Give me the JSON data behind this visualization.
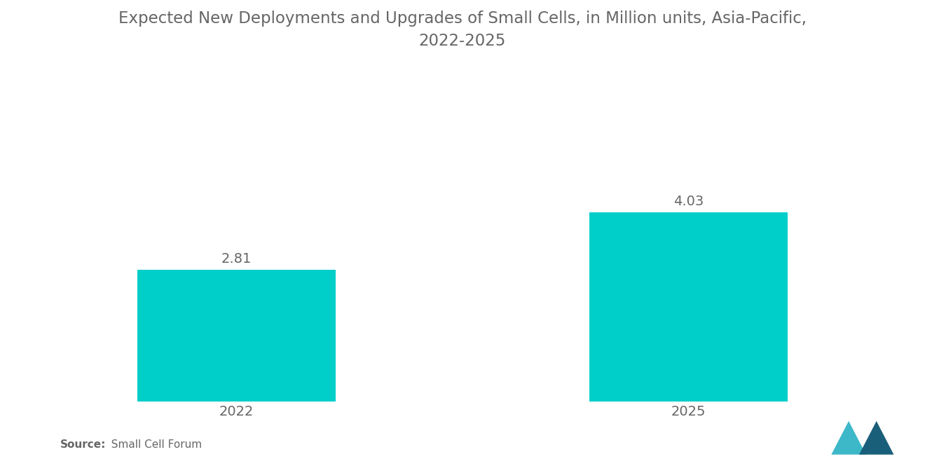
{
  "title": "Expected New Deployments and Upgrades of Small Cells, in Million units, Asia-Pacific,\n2022-2025",
  "categories": [
    "2022",
    "2025"
  ],
  "values": [
    2.81,
    4.03
  ],
  "bar_color": "#00CEC9",
  "bar_width": 0.22,
  "label_color": "#666666",
  "title_color": "#666666",
  "title_fontsize": 16.5,
  "label_fontsize": 14,
  "value_fontsize": 14,
  "source_bold": "Source:",
  "source_regular": "  Small Cell Forum",
  "source_fontsize": 11,
  "background_color": "#ffffff",
  "ylim": [
    0,
    7.5
  ],
  "xlim": [
    0,
    1
  ],
  "x_positions": [
    0.25,
    0.75
  ]
}
